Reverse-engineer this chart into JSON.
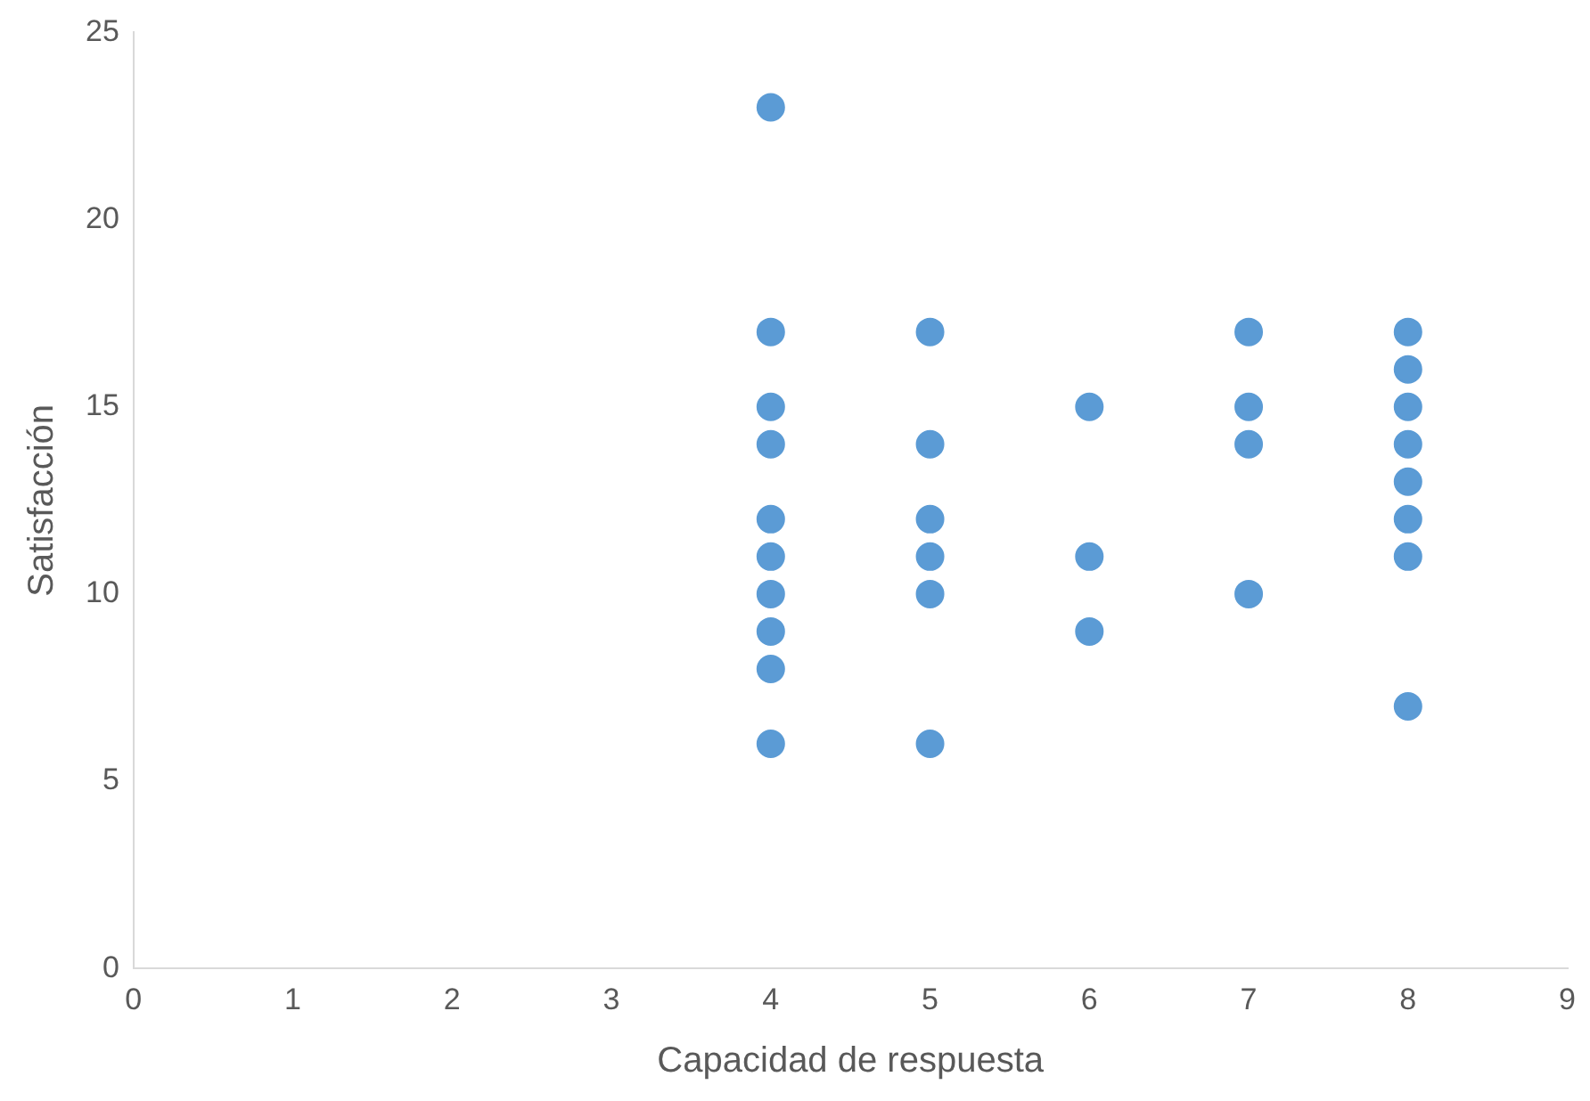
{
  "chart_data": {
    "type": "scatter",
    "xlabel": "Capacidad de respuesta",
    "ylabel": "Satisfacción",
    "series": [
      {
        "color": "#5b9bd5",
        "x": [
          4,
          4,
          4,
          4,
          4,
          4,
          4,
          4,
          4,
          4,
          5,
          5,
          5,
          5,
          5,
          5,
          6,
          6,
          6,
          7,
          7,
          7,
          7,
          8,
          8,
          8,
          8,
          8,
          8,
          8,
          8
        ],
        "values": [
          23,
          17,
          15,
          14,
          12,
          11,
          10,
          9,
          8,
          6,
          17,
          14,
          12,
          11,
          10,
          6,
          15,
          11,
          9,
          17,
          15,
          14,
          10,
          17,
          16,
          15,
          14,
          13,
          12,
          11,
          7
        ]
      }
    ],
    "xlim": [
      0,
      9
    ],
    "xticks": [
      0,
      1,
      2,
      3,
      4,
      5,
      6,
      7,
      8,
      9
    ],
    "ylim": [
      0,
      25
    ],
    "yticks": [
      0,
      5,
      10,
      15,
      20,
      25
    ],
    "grid": false,
    "legend": false,
    "marker": "circle"
  }
}
